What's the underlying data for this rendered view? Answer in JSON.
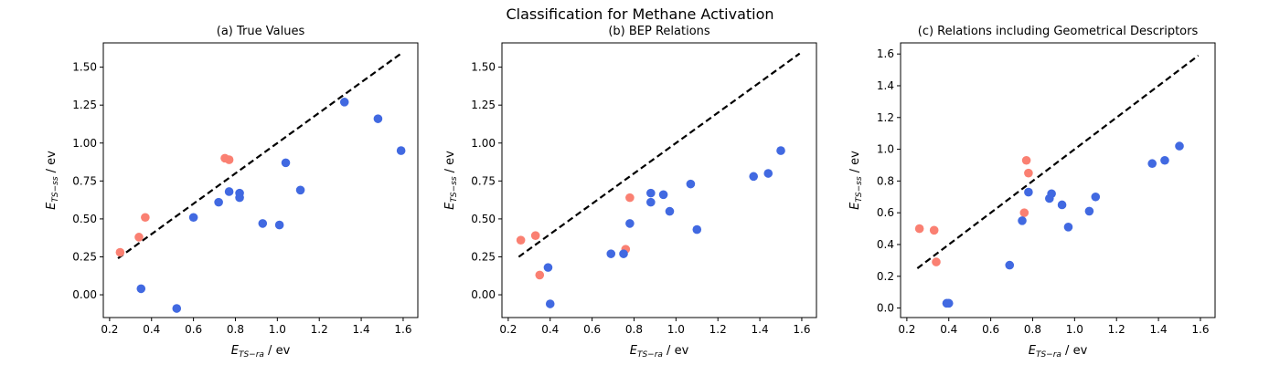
{
  "figure": {
    "suptitle": "Classification for Methane Activation",
    "colors": {
      "blue": "#4169e1",
      "salmon": "#fa8072",
      "line": "#000000"
    }
  },
  "chart_data": [
    {
      "type": "scatter",
      "title": "(a) True Values",
      "xlabel_main": "E",
      "xlabel_sub": "TS−ra",
      "xlabel_unit": " / ev",
      "ylabel_main": "E",
      "ylabel_sub": "TS−ss",
      "ylabel_unit": " / ev",
      "xlim": [
        0.17,
        1.67
      ],
      "ylim": [
        -0.15,
        1.66
      ],
      "xticks": [
        "0.2",
        "0.4",
        "0.6",
        "0.8",
        "1.0",
        "1.2",
        "1.4",
        "1.6"
      ],
      "yticks": [
        "0.00",
        "0.25",
        "0.50",
        "0.75",
        "1.00",
        "1.25",
        "1.50"
      ],
      "diagonal": [
        [
          0.24,
          0.24
        ],
        [
          1.59,
          1.59
        ]
      ],
      "series": [
        {
          "color": "salmon",
          "points": [
            [
              0.25,
              0.28
            ],
            [
              0.34,
              0.38
            ],
            [
              0.37,
              0.51
            ],
            [
              0.75,
              0.9
            ],
            [
              0.77,
              0.89
            ]
          ]
        },
        {
          "color": "blue",
          "points": [
            [
              0.35,
              0.04
            ],
            [
              0.52,
              -0.09
            ],
            [
              0.6,
              0.51
            ],
            [
              0.72,
              0.61
            ],
            [
              0.77,
              0.68
            ],
            [
              0.82,
              0.67
            ],
            [
              0.82,
              0.64
            ],
            [
              0.93,
              0.47
            ],
            [
              1.01,
              0.46
            ],
            [
              1.04,
              0.87
            ],
            [
              1.11,
              0.69
            ],
            [
              1.32,
              1.27
            ],
            [
              1.48,
              1.16
            ],
            [
              1.59,
              0.95
            ]
          ]
        }
      ]
    },
    {
      "type": "scatter",
      "title": "(b) BEP Relations",
      "xlabel_main": "E",
      "xlabel_sub": "TS−ra",
      "xlabel_unit": " / ev",
      "ylabel_main": "E",
      "ylabel_sub": "TS−ss",
      "ylabel_unit": " / ev",
      "xlim": [
        0.17,
        1.67
      ],
      "ylim": [
        -0.15,
        1.66
      ],
      "xticks": [
        "0.2",
        "0.4",
        "0.6",
        "0.8",
        "1.0",
        "1.2",
        "1.4",
        "1.6"
      ],
      "yticks": [
        "0.00",
        "0.25",
        "0.50",
        "0.75",
        "1.00",
        "1.25",
        "1.50"
      ],
      "diagonal": [
        [
          0.25,
          0.25
        ],
        [
          1.59,
          1.59
        ]
      ],
      "series": [
        {
          "color": "salmon",
          "points": [
            [
              0.26,
              0.36
            ],
            [
              0.33,
              0.39
            ],
            [
              0.35,
              0.13
            ],
            [
              0.76,
              0.3
            ],
            [
              0.78,
              0.64
            ]
          ]
        },
        {
          "color": "blue",
          "points": [
            [
              0.39,
              0.18
            ],
            [
              0.4,
              -0.06
            ],
            [
              0.69,
              0.27
            ],
            [
              0.75,
              0.27
            ],
            [
              0.78,
              0.47
            ],
            [
              0.88,
              0.67
            ],
            [
              0.88,
              0.61
            ],
            [
              0.94,
              0.66
            ],
            [
              0.97,
              0.55
            ],
            [
              1.07,
              0.73
            ],
            [
              1.1,
              0.43
            ],
            [
              1.37,
              0.78
            ],
            [
              1.44,
              0.8
            ],
            [
              1.5,
              0.95
            ]
          ]
        }
      ]
    },
    {
      "type": "scatter",
      "title": "(c) Relations including Geometrical Descriptors",
      "xlabel_main": "E",
      "xlabel_sub": "TS−ra",
      "xlabel_unit": " / ev",
      "ylabel_main": "E",
      "ylabel_sub": "TS−ss",
      "ylabel_unit": " / ev",
      "xlim": [
        0.17,
        1.67
      ],
      "ylim": [
        -0.06,
        1.67
      ],
      "xticks": [
        "0.2",
        "0.4",
        "0.6",
        "0.8",
        "1.0",
        "1.2",
        "1.4",
        "1.6"
      ],
      "yticks": [
        "0.0",
        "0.2",
        "0.4",
        "0.6",
        "0.8",
        "1.0",
        "1.2",
        "1.4",
        "1.6"
      ],
      "diagonal": [
        [
          0.25,
          0.25
        ],
        [
          1.59,
          1.59
        ]
      ],
      "series": [
        {
          "color": "salmon",
          "points": [
            [
              0.26,
              0.5
            ],
            [
              0.33,
              0.49
            ],
            [
              0.34,
              0.29
            ],
            [
              0.76,
              0.6
            ],
            [
              0.77,
              0.93
            ],
            [
              0.78,
              0.85
            ]
          ]
        },
        {
          "color": "blue",
          "points": [
            [
              0.39,
              0.03
            ],
            [
              0.4,
              0.03
            ],
            [
              0.69,
              0.27
            ],
            [
              0.75,
              0.55
            ],
            [
              0.78,
              0.73
            ],
            [
              0.88,
              0.69
            ],
            [
              0.89,
              0.72
            ],
            [
              0.94,
              0.65
            ],
            [
              0.97,
              0.51
            ],
            [
              1.07,
              0.61
            ],
            [
              1.1,
              0.7
            ],
            [
              1.37,
              0.91
            ],
            [
              1.43,
              0.93
            ],
            [
              1.5,
              1.02
            ]
          ]
        }
      ]
    }
  ]
}
